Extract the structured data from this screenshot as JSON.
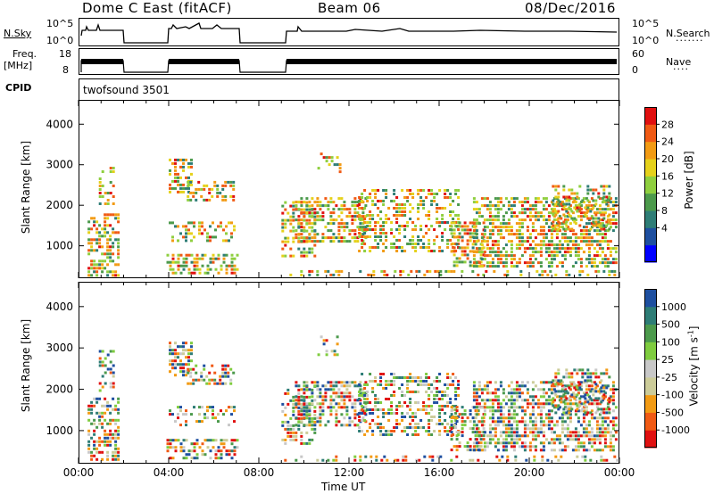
{
  "header": {
    "station": "Dome C East (fitACF)",
    "beam": "Beam 06",
    "date": "08/Dec/2016"
  },
  "top_panels": {
    "nsky_label": "N.Sky",
    "nsky_ticks": [
      "10^5",
      "10^0"
    ],
    "nsearch_label": "N.Search",
    "nsearch_ticks": [
      "10^5",
      "10^0"
    ],
    "freq_label": "Freq.",
    "freq_unit": "[MHz]",
    "freq_ticks": [
      "18",
      "8"
    ],
    "nave_label": "Nave",
    "nave_ticks": [
      "60",
      "0"
    ],
    "cpid_label": "CPID",
    "cpid_value": "twofsound 3501"
  },
  "chart_data": [
    {
      "type": "heatmap",
      "name": "power",
      "ylabel": "Slant Range [km]",
      "ylim": [
        200,
        4600
      ],
      "yticks": [
        "4000",
        "3000",
        "2000",
        "1000"
      ],
      "xlim": [
        0,
        24
      ],
      "colorbar": {
        "label": "Power [dB]",
        "ticks": [
          "28",
          "24",
          "20",
          "16",
          "12",
          "8",
          "4"
        ],
        "colors": [
          "#0000ff",
          "#1e4fa0",
          "#2e7d76",
          "#4c9a4c",
          "#8fcf3f",
          "#e5d11b",
          "#f29b14",
          "#f05a14",
          "#e01010"
        ]
      }
    },
    {
      "type": "heatmap",
      "name": "velocity",
      "ylabel": "Slant Range [km]",
      "ylim": [
        200,
        4600
      ],
      "yticks": [
        "4000",
        "3000",
        "2000",
        "1000"
      ],
      "xlim": [
        0,
        24
      ],
      "colorbar": {
        "label": "Velocity",
        "unit": "[m s",
        "unit_exp": "-1",
        "unit_close": "]",
        "ticks": [
          "1000",
          "500",
          "100",
          "25",
          "-25",
          "-100",
          "-500",
          "-1000"
        ],
        "colors": [
          "#e01010",
          "#f05a14",
          "#f29b14",
          "#cccc99",
          "#c8c8c8",
          "#7fcc3f",
          "#4c9a4c",
          "#2e7d76",
          "#1e4fa0"
        ]
      }
    }
  ],
  "xaxis": {
    "label": "Time UT",
    "ticks": [
      "00:00",
      "04:00",
      "08:00",
      "12:00",
      "16:00",
      "20:00",
      "00:00"
    ]
  }
}
